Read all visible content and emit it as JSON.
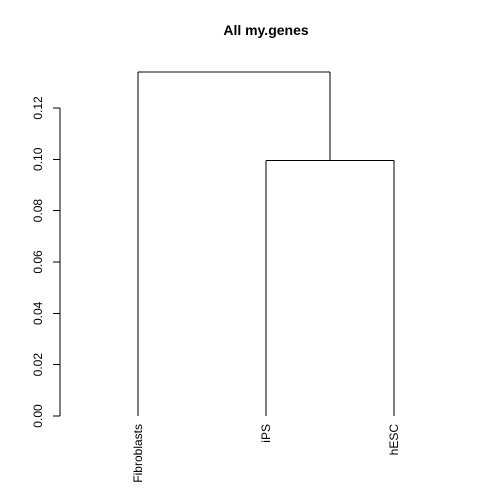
{
  "chart_data": {
    "type": "dendrogram",
    "title": "All my.genes",
    "xlabel": "",
    "ylabel": "",
    "ylim": [
      0,
      0.134
    ],
    "yticks": [
      0.0,
      0.02,
      0.04,
      0.06,
      0.08,
      0.1,
      0.12
    ],
    "ytick_labels": [
      "0.00",
      "0.02",
      "0.04",
      "0.06",
      "0.08",
      "0.10",
      "0.12"
    ],
    "leaves": [
      "Fibroblasts",
      "iPS",
      "hESC"
    ],
    "merges": [
      {
        "left": "iPS",
        "right": "hESC",
        "height": 0.0995
      },
      {
        "left": "Fibroblasts",
        "right": "iPS+hESC",
        "height": 0.134
      }
    ],
    "grid": false,
    "line_color": "#000000"
  }
}
